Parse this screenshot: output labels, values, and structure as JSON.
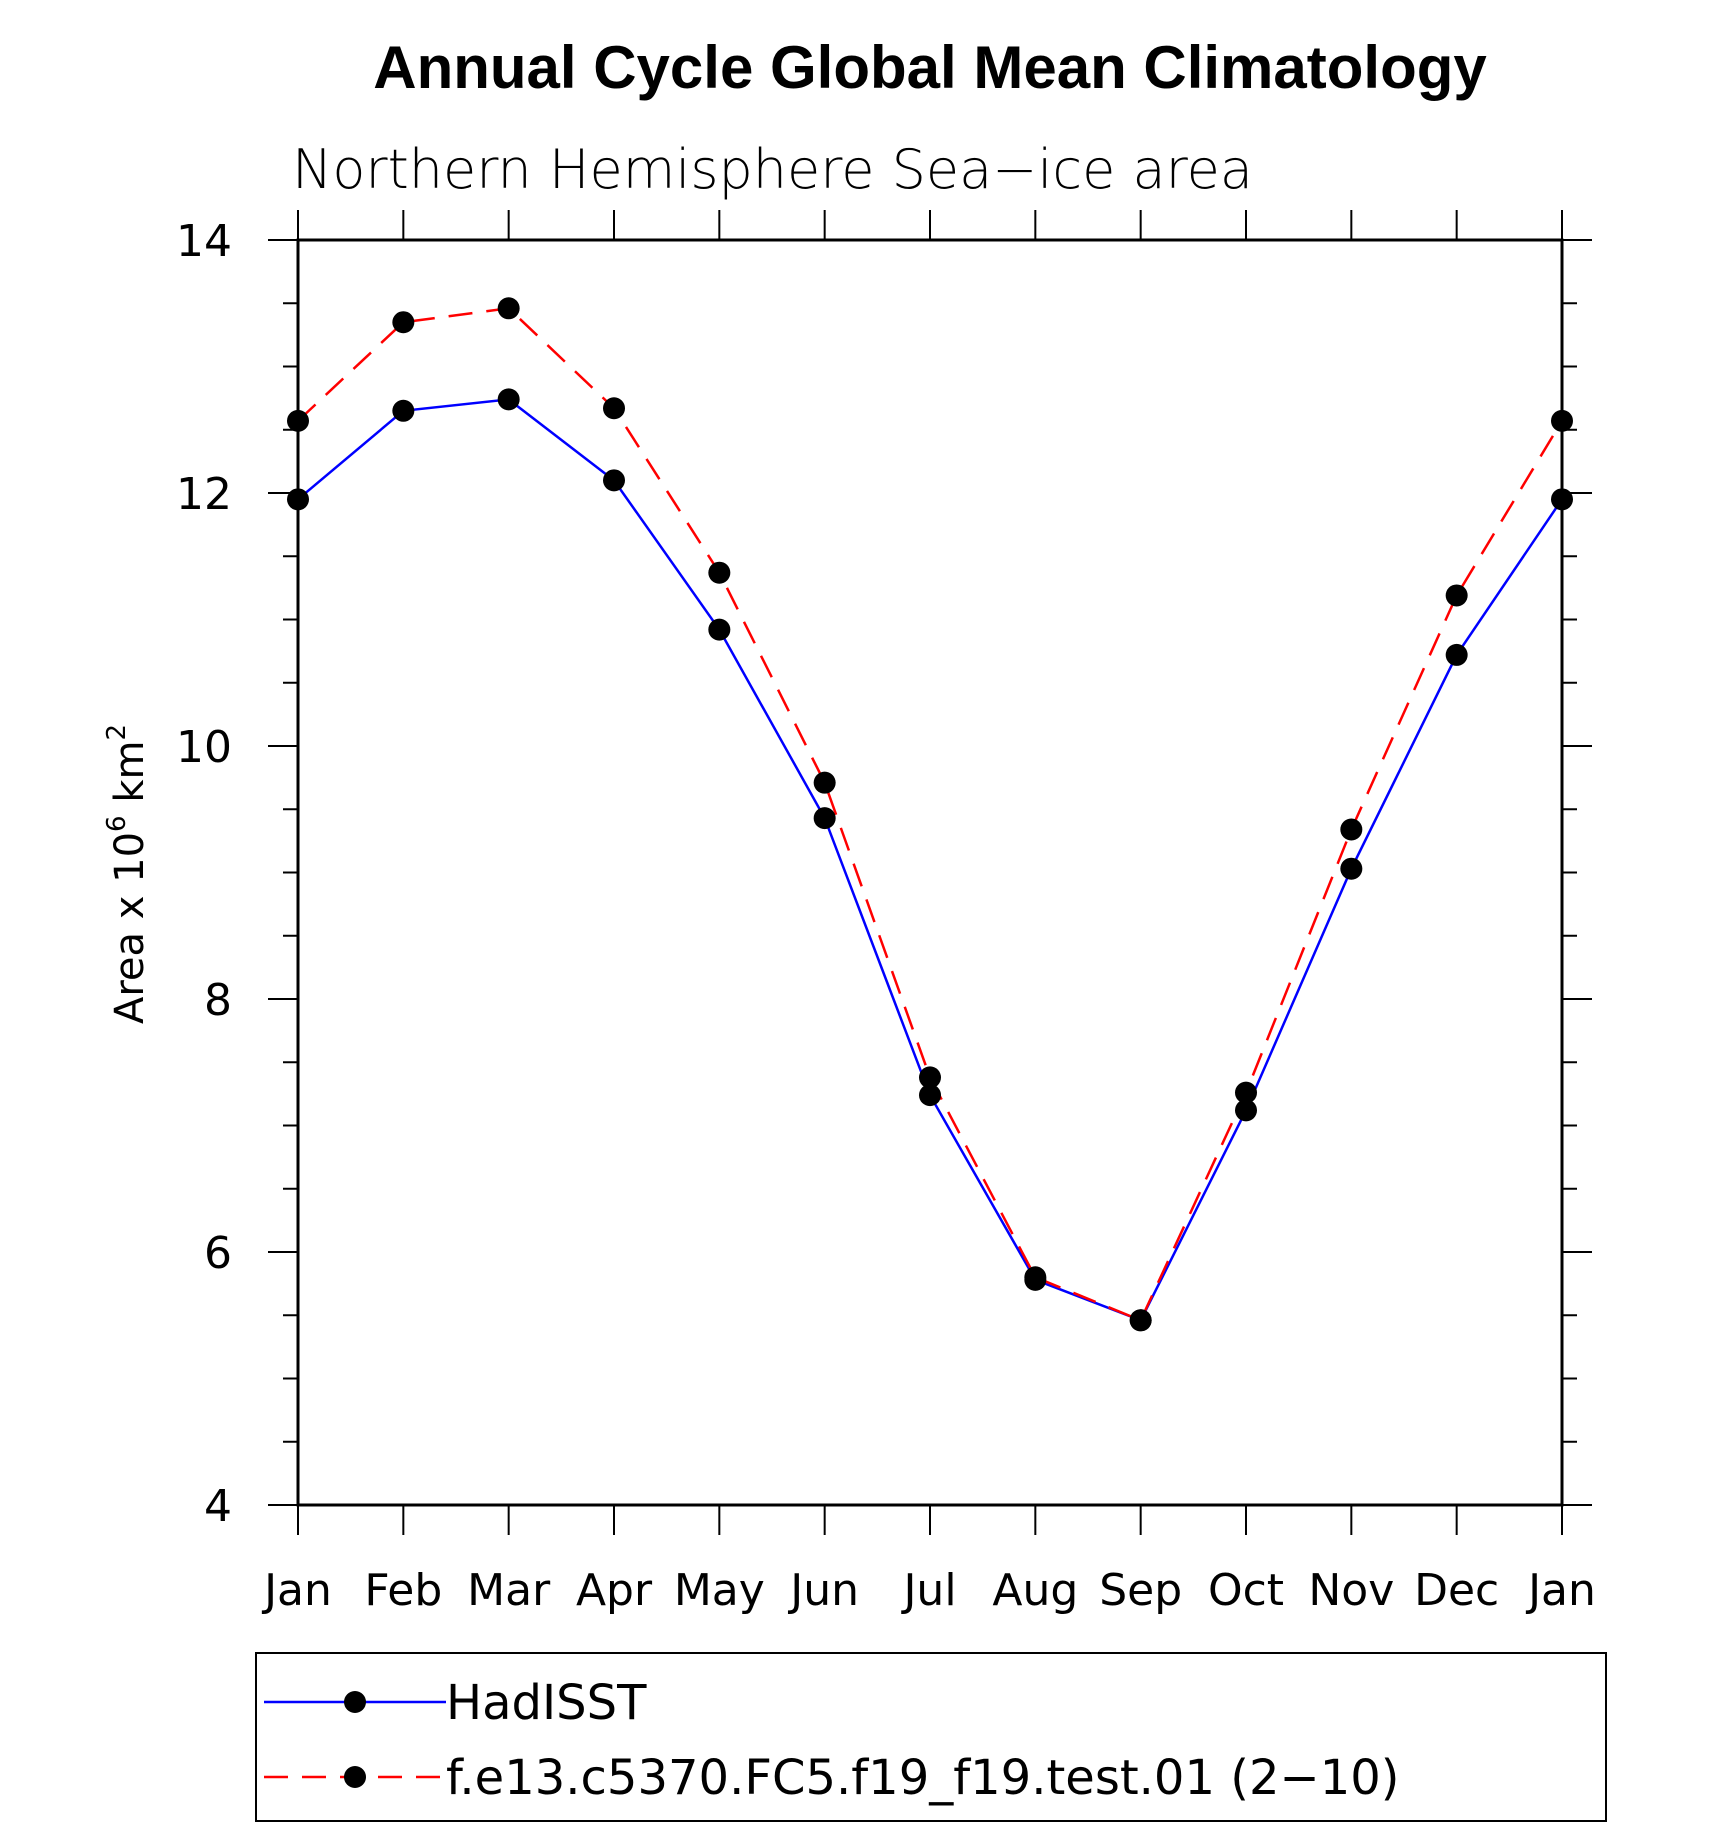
{
  "chart_data": {
    "type": "line",
    "title": "Annual Cycle Global Mean Climatology",
    "subtitle": "Northern Hemisphere Sea−ice area",
    "ylabel": "Area x 10",
    "ylabel_exp1": "6",
    "ylabel_unit": " km",
    "ylabel_exp2": "2",
    "xlabel": "",
    "categories": [
      "Jan",
      "Feb",
      "Mar",
      "Apr",
      "May",
      "Jun",
      "Jul",
      "Aug",
      "Sep",
      "Oct",
      "Nov",
      "Dec",
      "Jan"
    ],
    "ylim": [
      4,
      14
    ],
    "yticks": [
      4,
      6,
      8,
      10,
      12,
      14
    ],
    "series": [
      {
        "name": "HadISST",
        "color": "#0000ff",
        "dash": "solid",
        "marker": "filled-circle",
        "values": [
          11.95,
          12.65,
          12.74,
          12.1,
          10.92,
          9.43,
          7.24,
          5.78,
          5.46,
          7.12,
          9.03,
          10.72,
          11.95
        ]
      },
      {
        "name": "f.e13.c5370.FC5.f19_f19.test.01 (2−10)",
        "color": "#ff0000",
        "dash": "dashed",
        "marker": "filled-circle",
        "values": [
          12.57,
          13.35,
          13.46,
          12.67,
          11.37,
          9.71,
          7.38,
          5.8,
          5.46,
          7.26,
          9.34,
          11.19,
          12.57
        ]
      }
    ],
    "grid": false,
    "legend_position": "bottom"
  }
}
